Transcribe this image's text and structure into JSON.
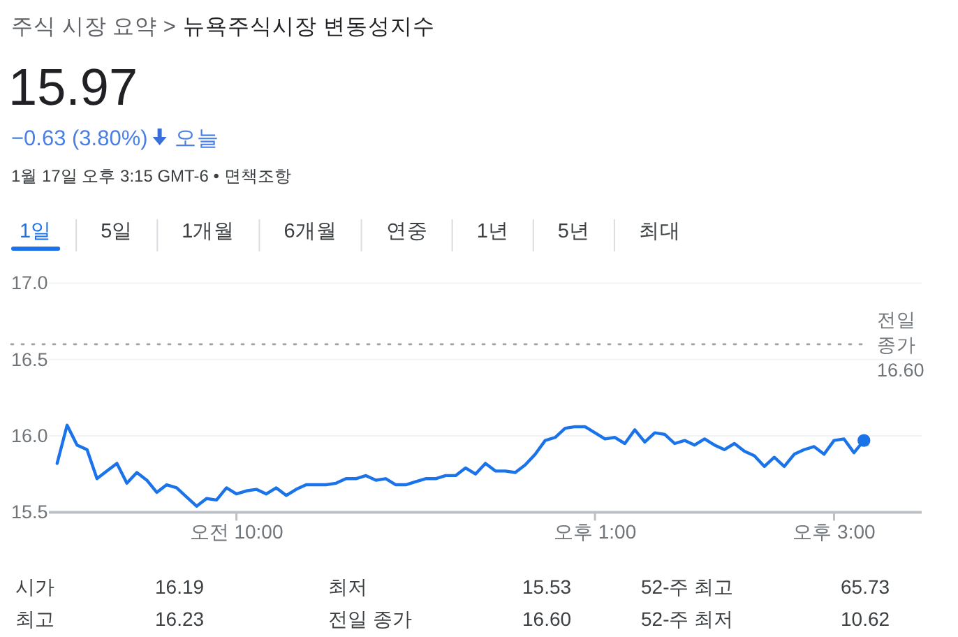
{
  "chart_data": {
    "type": "line",
    "title": "뉴욕주식시장 변동성지수",
    "categories": [
      null,
      null,
      null,
      null,
      null,
      null,
      null,
      null,
      null,
      null,
      null,
      null,
      null,
      null,
      null,
      null,
      null,
      null,
      "오전 10:00",
      null,
      null,
      null,
      null,
      null,
      null,
      null,
      null,
      null,
      null,
      null,
      null,
      null,
      null,
      null,
      null,
      null,
      null,
      null,
      null,
      null,
      null,
      null,
      null,
      null,
      null,
      null,
      null,
      null,
      null,
      null,
      null,
      null,
      null,
      null,
      "오후 1:00",
      null,
      null,
      null,
      null,
      null,
      null,
      null,
      null,
      null,
      null,
      null,
      null,
      null,
      null,
      null,
      null,
      null,
      null,
      null,
      null,
      null,
      null,
      null,
      "오후 3:00",
      null,
      null,
      null
    ],
    "series": [
      {
        "color": "#1a73e8",
        "values": [
          15.82,
          16.07,
          15.94,
          15.91,
          15.72,
          15.77,
          15.82,
          15.69,
          15.76,
          15.71,
          15.63,
          15.68,
          15.66,
          15.6,
          15.54,
          15.59,
          15.58,
          15.66,
          15.62,
          15.64,
          15.65,
          15.62,
          15.66,
          15.61,
          15.65,
          15.68,
          15.68,
          15.68,
          15.69,
          15.72,
          15.72,
          15.74,
          15.71,
          15.72,
          15.68,
          15.68,
          15.7,
          15.72,
          15.72,
          15.74,
          15.74,
          15.79,
          15.75,
          15.82,
          15.77,
          15.77,
          15.76,
          15.81,
          15.88,
          15.97,
          15.99,
          16.05,
          16.06,
          16.06,
          16.02,
          15.98,
          15.99,
          15.95,
          16.04,
          15.96,
          16.02,
          16.01,
          15.95,
          15.97,
          15.94,
          15.98,
          15.94,
          15.91,
          15.95,
          15.9,
          15.87,
          15.8,
          15.86,
          15.8,
          15.88,
          15.91,
          15.93,
          15.88,
          15.97,
          15.98,
          15.89,
          15.97
        ]
      },
      {
        "type": "scatter",
        "color": "#1a73e8",
        "marker": "circle",
        "values": [
          null,
          null,
          null,
          null,
          null,
          null,
          null,
          null,
          null,
          null,
          null,
          null,
          null,
          null,
          null,
          null,
          null,
          null,
          null,
          null,
          null,
          null,
          null,
          null,
          null,
          null,
          null,
          null,
          null,
          null,
          null,
          null,
          null,
          null,
          null,
          null,
          null,
          null,
          null,
          null,
          null,
          null,
          null,
          null,
          null,
          null,
          null,
          null,
          null,
          null,
          null,
          null,
          null,
          null,
          null,
          null,
          null,
          null,
          null,
          null,
          null,
          null,
          null,
          null,
          null,
          null,
          null,
          null,
          null,
          null,
          null,
          null,
          null,
          null,
          null,
          null,
          null,
          null,
          null,
          null,
          null,
          15.97
        ]
      }
    ],
    "ylim": [
      15.5,
      17
    ],
    "yticks": [
      15.5,
      {
        "value": 16,
        "label": "16.0"
      },
      16.5,
      {
        "value": 17,
        "label": "17.0"
      }
    ],
    "grid": "y",
    "ref_lines": [
      {
        "axis": "y",
        "value": 16.6,
        "label": "전일 종가 16.60",
        "color": "#9aa0a6",
        "line_style": "dotted"
      }
    ],
    "annotations": [
      "주식 시장 요약 >",
      "15.97",
      "−0.63 (3.80%)",
      "오늘",
      "1월 17일 오후 3:15 GMT-6 • 면책조항",
      "1일",
      "5일",
      "1개월",
      "6개월",
      "연중",
      "1년",
      "5년",
      "최대",
      "시가",
      "16.19",
      "최저",
      "15.53",
      "52-주 최고",
      "65.73",
      "최고",
      "16.23",
      "전일 종가",
      "16.60",
      "52-주 최저",
      "10.62"
    ]
  }
}
